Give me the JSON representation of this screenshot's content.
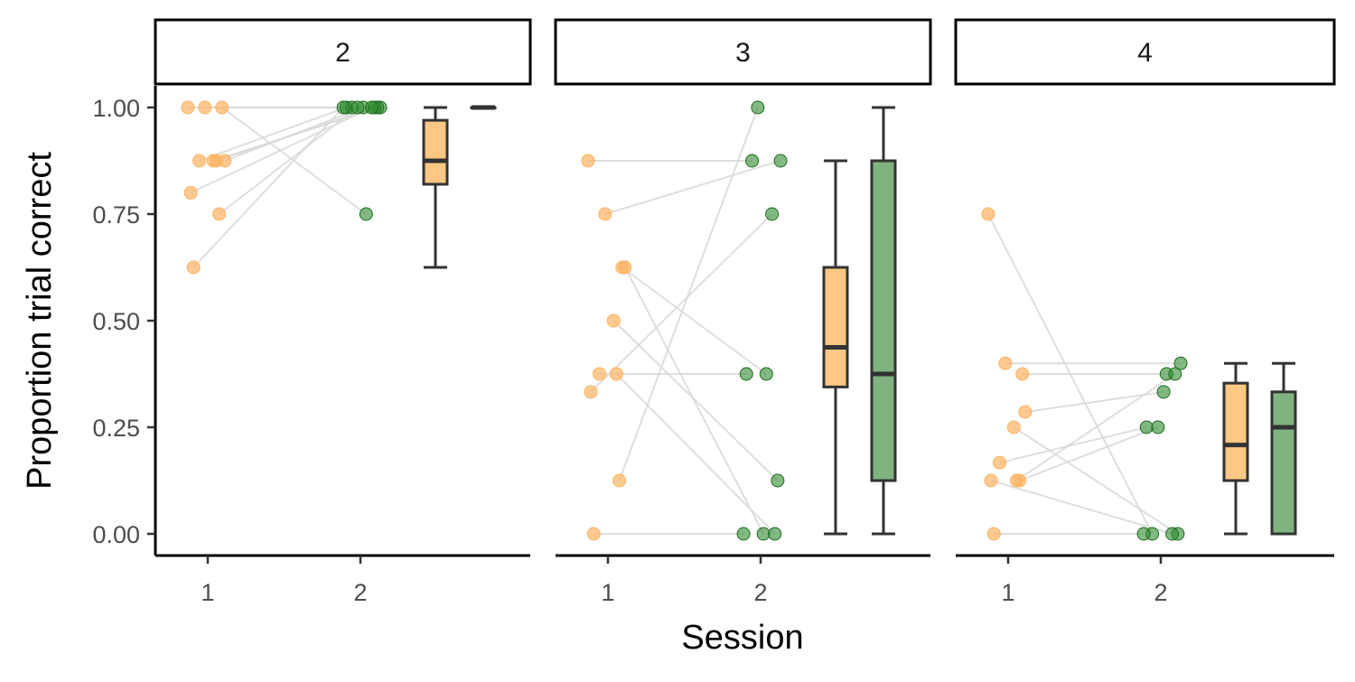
{
  "chart_data": {
    "type": "scatter",
    "xlabel": "Session",
    "ylabel": "Proportion trial correct",
    "ylim": [
      -0.05,
      1.05
    ],
    "y_ticks": [
      "0.00",
      "0.25",
      "0.50",
      "0.75",
      "1.00"
    ],
    "x_ticks": [
      "1",
      "2"
    ],
    "grid": false,
    "legend": "none",
    "colors": {
      "session1": "#FDB462",
      "session2": "#2E8B2E",
      "box1": "#FFC784",
      "box2": "#7FB37F",
      "line": "#D9D9D9"
    },
    "panels": [
      {
        "strip": "2",
        "pairs": [
          {
            "s1": 1.0,
            "s2": 1.0
          },
          {
            "s1": 1.0,
            "s2": 1.0
          },
          {
            "s1": 1.0,
            "s2": 0.75
          },
          {
            "s1": 0.875,
            "s2": 1.0
          },
          {
            "s1": 0.875,
            "s2": 1.0
          },
          {
            "s1": 0.875,
            "s2": 1.0
          },
          {
            "s1": 0.875,
            "s2": 1.0
          },
          {
            "s1": 0.8,
            "s2": 1.0
          },
          {
            "s1": 0.75,
            "s2": 1.0
          },
          {
            "s1": 0.625,
            "s2": 1.0
          }
        ],
        "box1": {
          "min": 0.625,
          "q1": 0.82,
          "median": 0.875,
          "q3": 0.97,
          "max": 1.0
        },
        "box2": {
          "min": 1.0,
          "q1": 1.0,
          "median": 1.0,
          "q3": 1.0,
          "max": 1.0
        }
      },
      {
        "strip": "3",
        "pairs": [
          {
            "s1": 0.875,
            "s2": 0.875
          },
          {
            "s1": 0.75,
            "s2": 0.875
          },
          {
            "s1": 0.625,
            "s2": 0.375
          },
          {
            "s1": 0.625,
            "s2": 0.0
          },
          {
            "s1": 0.5,
            "s2": 0.125
          },
          {
            "s1": 0.375,
            "s2": 0.375
          },
          {
            "s1": 0.375,
            "s2": 0.0
          },
          {
            "s1": 0.333,
            "s2": 0.75
          },
          {
            "s1": 0.125,
            "s2": 1.0
          },
          {
            "s1": 0.0,
            "s2": 0.0
          }
        ],
        "box1": {
          "min": 0.0,
          "q1": 0.3445,
          "median": 0.4375,
          "q3": 0.625,
          "max": 0.875
        },
        "box2": {
          "min": 0.0,
          "q1": 0.125,
          "median": 0.375,
          "q3": 0.875,
          "max": 1.0
        }
      },
      {
        "strip": "4",
        "pairs": [
          {
            "s1": 0.75,
            "s2": 0.0
          },
          {
            "s1": 0.4,
            "s2": 0.4
          },
          {
            "s1": 0.375,
            "s2": 0.375
          },
          {
            "s1": 0.286,
            "s2": 0.333
          },
          {
            "s1": 0.25,
            "s2": 0.0
          },
          {
            "s1": 0.167,
            "s2": 0.25
          },
          {
            "s1": 0.125,
            "s2": 0.375
          },
          {
            "s1": 0.125,
            "s2": 0.0
          },
          {
            "s1": 0.125,
            "s2": 0.25
          },
          {
            "s1": 0.0,
            "s2": 0.0
          }
        ],
        "box1": {
          "min": 0.0,
          "q1": 0.125,
          "median": 0.2085,
          "q3": 0.3535,
          "max": 0.4
        },
        "box2": {
          "min": 0.0,
          "q1": 0.0,
          "median": 0.25,
          "q3": 0.333,
          "max": 0.4
        }
      }
    ]
  }
}
